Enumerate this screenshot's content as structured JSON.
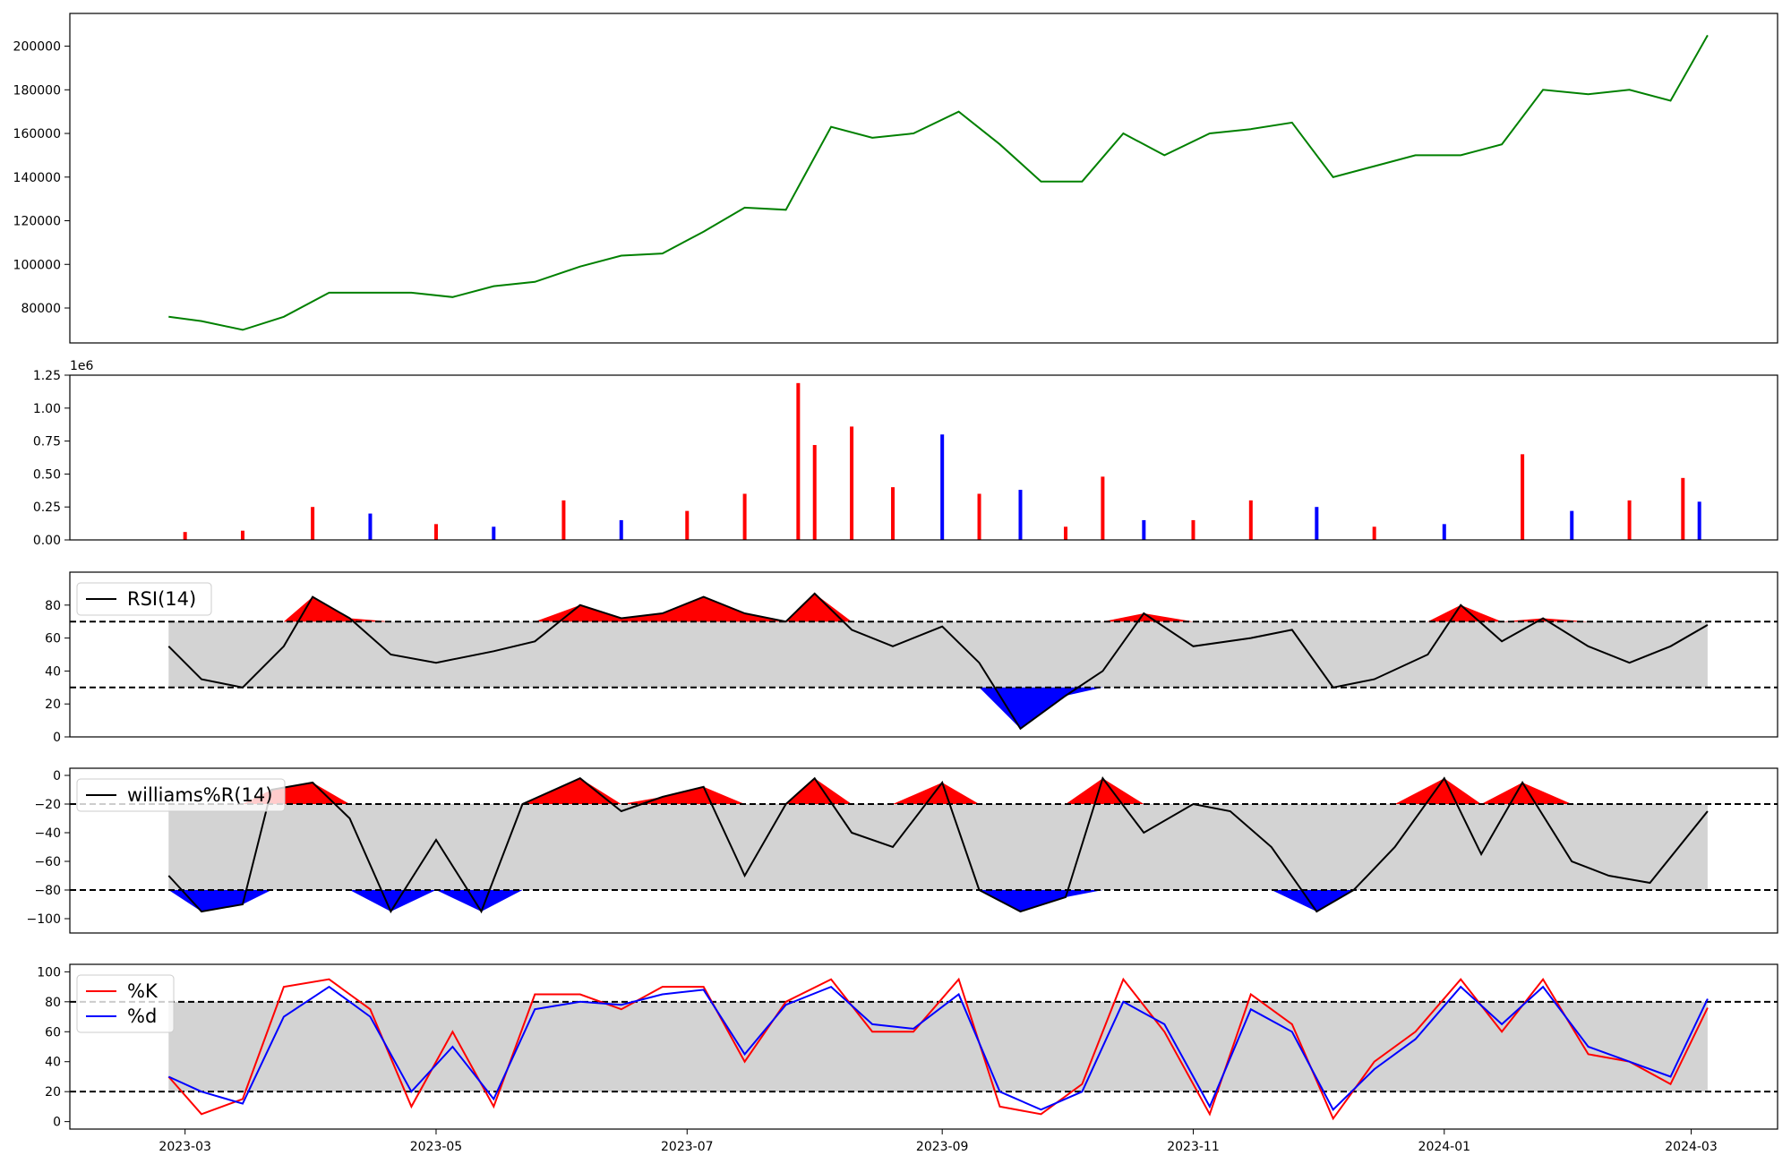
{
  "chart_data": [
    {
      "type": "line",
      "panel": "price",
      "color": "#008000",
      "ylim": [
        64000,
        215000
      ],
      "yticks": [
        80000,
        100000,
        120000,
        140000,
        160000,
        180000,
        200000
      ],
      "ytick_labels": [
        "80000",
        "100000",
        "120000",
        "140000",
        "160000",
        "180000",
        "200000"
      ],
      "x": [
        "2023-02-25",
        "2023-03-05",
        "2023-03-15",
        "2023-03-25",
        "2023-04-05",
        "2023-04-15",
        "2023-04-25",
        "2023-05-05",
        "2023-05-15",
        "2023-05-25",
        "2023-06-05",
        "2023-06-15",
        "2023-06-25",
        "2023-07-05",
        "2023-07-15",
        "2023-07-25",
        "2023-08-05",
        "2023-08-15",
        "2023-08-25",
        "2023-09-05",
        "2023-09-15",
        "2023-09-25",
        "2023-10-05",
        "2023-10-15",
        "2023-10-25",
        "2023-11-05",
        "2023-11-15",
        "2023-11-25",
        "2023-12-05",
        "2023-12-15",
        "2023-12-25",
        "2024-01-05",
        "2024-01-15",
        "2024-01-25",
        "2024-02-05",
        "2024-02-15",
        "2024-02-25",
        "2024-03-05"
      ],
      "values": [
        76000,
        74000,
        70000,
        76000,
        87000,
        87000,
        87000,
        85000,
        90000,
        92000,
        99000,
        104000,
        105000,
        115000,
        126000,
        125000,
        163000,
        158000,
        160000,
        170000,
        155000,
        138000,
        138000,
        160000,
        150000,
        160000,
        162000,
        165000,
        140000,
        145000,
        150000,
        150000,
        155000,
        180000,
        178000,
        180000,
        175000,
        205000
      ]
    },
    {
      "type": "bar",
      "panel": "volume",
      "scale_label": "1e6",
      "ylim": [
        0,
        1.25
      ],
      "yticks": [
        0,
        0.25,
        0.5,
        0.75,
        1.0,
        1.25
      ],
      "ytick_labels": [
        "0.00",
        "0.25",
        "0.50",
        "0.75",
        "1.00",
        "1.25"
      ],
      "colors": {
        "up": "#ff0000",
        "down": "#0000ff"
      },
      "x": [
        "2023-03-01",
        "2023-03-15",
        "2023-04-01",
        "2023-04-15",
        "2023-05-01",
        "2023-05-15",
        "2023-06-01",
        "2023-06-15",
        "2023-07-01",
        "2023-07-15",
        "2023-07-28",
        "2023-08-01",
        "2023-08-10",
        "2023-08-20",
        "2023-09-01",
        "2023-09-10",
        "2023-09-20",
        "2023-10-01",
        "2023-10-10",
        "2023-10-20",
        "2023-11-01",
        "2023-11-15",
        "2023-12-01",
        "2023-12-15",
        "2024-01-01",
        "2024-01-20",
        "2024-02-01",
        "2024-02-15",
        "2024-02-28",
        "2024-03-03"
      ],
      "values": [
        0.06,
        0.07,
        0.25,
        0.2,
        0.12,
        0.1,
        0.3,
        0.15,
        0.22,
        0.35,
        1.19,
        0.72,
        0.86,
        0.4,
        0.8,
        0.35,
        0.38,
        0.1,
        0.48,
        0.15,
        0.15,
        0.3,
        0.25,
        0.1,
        0.12,
        0.65,
        0.22,
        0.3,
        0.47,
        0.29
      ],
      "up": [
        true,
        true,
        true,
        false,
        true,
        false,
        true,
        false,
        true,
        true,
        true,
        true,
        true,
        true,
        false,
        true,
        false,
        true,
        true,
        false,
        true,
        true,
        false,
        true,
        false,
        true,
        false,
        true,
        true,
        false
      ]
    },
    {
      "type": "line",
      "panel": "rsi",
      "series": [
        {
          "name": "RSI(14)",
          "color": "#000000"
        }
      ],
      "ylim": [
        0,
        100
      ],
      "yticks": [
        0,
        20,
        40,
        60,
        80
      ],
      "ytick_labels": [
        "0",
        "20",
        "40",
        "60",
        "80"
      ],
      "bands": [
        30,
        70
      ],
      "fill_colors": {
        "band": "#d3d3d3",
        "above": "#ff0000",
        "below": "#0000ff"
      },
      "x": [
        "2023-02-25",
        "2023-03-05",
        "2023-03-15",
        "2023-03-25",
        "2023-04-01",
        "2023-04-10",
        "2023-04-20",
        "2023-05-01",
        "2023-05-15",
        "2023-05-25",
        "2023-06-05",
        "2023-06-15",
        "2023-06-25",
        "2023-07-05",
        "2023-07-15",
        "2023-07-25",
        "2023-08-01",
        "2023-08-10",
        "2023-08-20",
        "2023-09-01",
        "2023-09-10",
        "2023-09-20",
        "2023-10-01",
        "2023-10-10",
        "2023-10-20",
        "2023-11-01",
        "2023-11-15",
        "2023-11-25",
        "2023-12-05",
        "2023-12-15",
        "2023-12-28",
        "2024-01-05",
        "2024-01-15",
        "2024-01-25",
        "2024-02-05",
        "2024-02-15",
        "2024-02-25",
        "2024-03-05"
      ],
      "values": [
        55,
        35,
        30,
        55,
        85,
        72,
        50,
        45,
        52,
        58,
        80,
        72,
        75,
        85,
        75,
        70,
        87,
        65,
        55,
        67,
        45,
        5,
        25,
        40,
        75,
        55,
        60,
        65,
        30,
        35,
        50,
        80,
        58,
        72,
        55,
        45,
        55,
        68
      ]
    },
    {
      "type": "line",
      "panel": "williams",
      "series": [
        {
          "name": "williams%R(14)",
          "color": "#000000"
        }
      ],
      "ylim": [
        -110,
        5
      ],
      "yticks": [
        -100,
        -80,
        -60,
        -40,
        -20,
        0
      ],
      "ytick_labels": [
        "−100",
        "−80",
        "−60",
        "−40",
        "−20",
        "0"
      ],
      "bands": [
        -80,
        -20
      ],
      "fill_colors": {
        "band": "#d3d3d3",
        "above": "#ff0000",
        "below": "#0000ff"
      },
      "x": [
        "2023-02-25",
        "2023-03-05",
        "2023-03-15",
        "2023-03-22",
        "2023-04-01",
        "2023-04-10",
        "2023-04-20",
        "2023-05-01",
        "2023-05-12",
        "2023-05-22",
        "2023-06-05",
        "2023-06-15",
        "2023-06-25",
        "2023-07-05",
        "2023-07-15",
        "2023-07-25",
        "2023-08-01",
        "2023-08-10",
        "2023-08-20",
        "2023-09-01",
        "2023-09-10",
        "2023-09-20",
        "2023-10-01",
        "2023-10-10",
        "2023-10-20",
        "2023-11-01",
        "2023-11-10",
        "2023-11-20",
        "2023-12-01",
        "2023-12-10",
        "2023-12-20",
        "2024-01-01",
        "2024-01-10",
        "2024-01-20",
        "2024-02-01",
        "2024-02-10",
        "2024-02-20",
        "2024-03-05"
      ],
      "values": [
        -70,
        -95,
        -90,
        -10,
        -5,
        -30,
        -95,
        -45,
        -95,
        -20,
        -2,
        -25,
        -15,
        -8,
        -70,
        -20,
        -2,
        -40,
        -50,
        -5,
        -80,
        -95,
        -85,
        -2,
        -40,
        -20,
        -25,
        -50,
        -95,
        -80,
        -50,
        -2,
        -55,
        -5,
        -60,
        -70,
        -75,
        -25
      ]
    },
    {
      "type": "line",
      "panel": "stochastic",
      "series": [
        {
          "name": "%K",
          "color": "#ff0000"
        },
        {
          "name": "%d",
          "color": "#0000ff"
        }
      ],
      "ylim": [
        -5,
        105
      ],
      "yticks": [
        0,
        20,
        40,
        60,
        80,
        100
      ],
      "ytick_labels": [
        "0",
        "20",
        "40",
        "60",
        "80",
        "100"
      ],
      "bands": [
        20,
        80
      ],
      "fill_colors": {
        "band": "#d3d3d3"
      },
      "x": [
        "2023-02-25",
        "2023-03-05",
        "2023-03-15",
        "2023-03-25",
        "2023-04-05",
        "2023-04-15",
        "2023-04-25",
        "2023-05-05",
        "2023-05-15",
        "2023-05-25",
        "2023-06-05",
        "2023-06-15",
        "2023-06-25",
        "2023-07-05",
        "2023-07-15",
        "2023-07-25",
        "2023-08-05",
        "2023-08-15",
        "2023-08-25",
        "2023-09-05",
        "2023-09-15",
        "2023-09-25",
        "2023-10-05",
        "2023-10-15",
        "2023-10-25",
        "2023-11-05",
        "2023-11-15",
        "2023-11-25",
        "2023-12-05",
        "2023-12-15",
        "2023-12-25",
        "2024-01-05",
        "2024-01-15",
        "2024-01-25",
        "2024-02-05",
        "2024-02-15",
        "2024-02-25",
        "2024-03-05"
      ],
      "k_values": [
        30,
        5,
        15,
        90,
        95,
        75,
        10,
        60,
        10,
        85,
        85,
        75,
        90,
        90,
        40,
        80,
        95,
        60,
        60,
        95,
        10,
        5,
        25,
        95,
        60,
        5,
        85,
        65,
        2,
        40,
        60,
        95,
        60,
        95,
        45,
        40,
        25,
        76
      ],
      "d_values": [
        30,
        20,
        12,
        70,
        90,
        70,
        20,
        50,
        15,
        75,
        80,
        78,
        85,
        88,
        45,
        78,
        90,
        65,
        62,
        85,
        20,
        8,
        20,
        80,
        65,
        10,
        75,
        60,
        8,
        35,
        55,
        90,
        65,
        90,
        50,
        40,
        30,
        82
      ],
      "legend_items": [
        "%K",
        "%d"
      ]
    }
  ],
  "x_axis": {
    "start": "2023-02-01",
    "end": "2024-03-22",
    "ticks": [
      "2023-03-01",
      "2023-05-01",
      "2023-07-01",
      "2023-09-01",
      "2023-11-01",
      "2024-01-01",
      "2024-03-01"
    ],
    "tick_labels": [
      "2023-03",
      "2023-05",
      "2023-07",
      "2023-09",
      "2023-11",
      "2024-01",
      "2024-03"
    ]
  }
}
